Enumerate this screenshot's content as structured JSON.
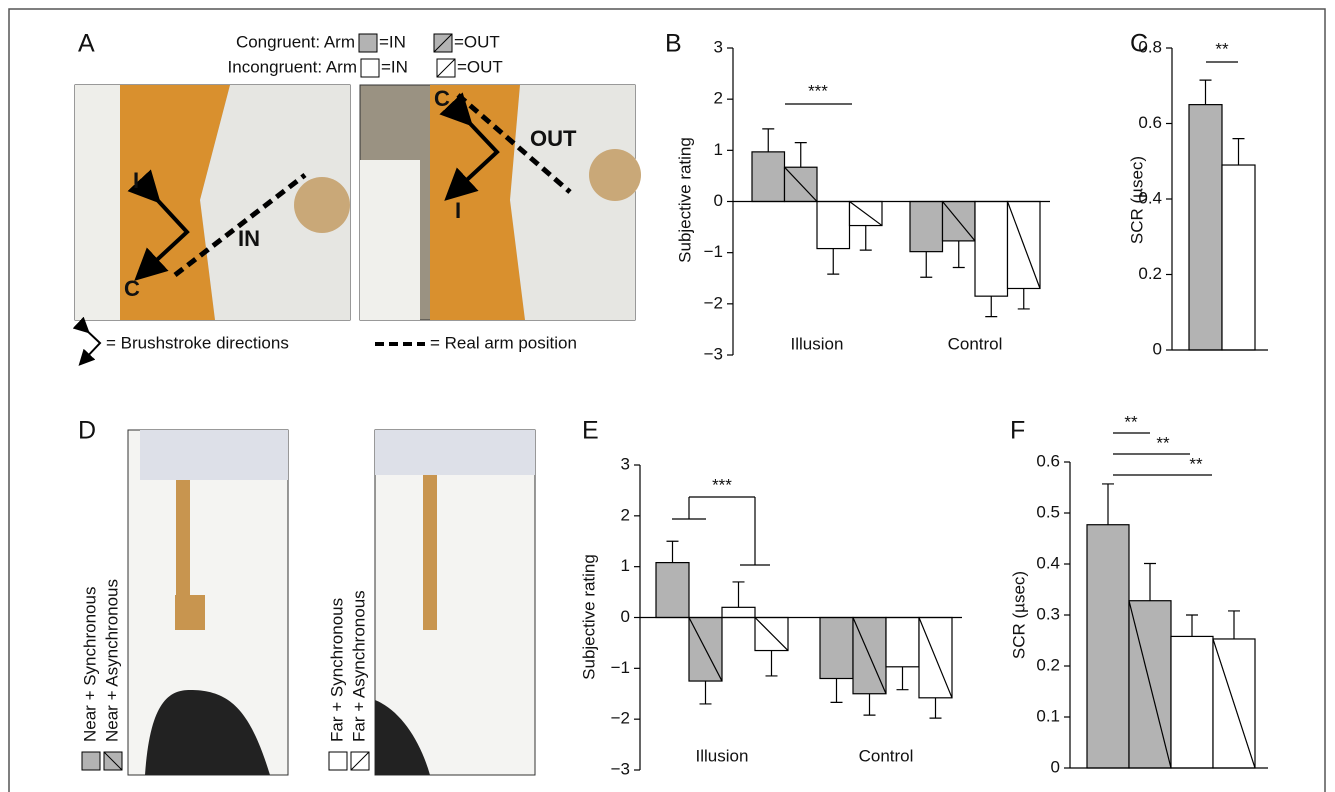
{
  "chart_data": [
    {
      "type": "bar",
      "panel": "B",
      "ylabel": "Subjective rating",
      "categories": [
        "Illusion",
        "Control"
      ],
      "series": [
        {
          "color": "#b3b3b3",
          "hatch": false,
          "values": [
            0.97,
            -0.98
          ],
          "errors": [
            0.45,
            0.5
          ]
        },
        {
          "color": "#b3b3b3",
          "hatch": true,
          "values": [
            0.67,
            -0.77
          ],
          "errors": [
            0.48,
            0.52
          ]
        },
        {
          "color": "#ffffff",
          "hatch": false,
          "values": [
            -0.92,
            -1.85
          ],
          "errors": [
            0.5,
            0.4
          ]
        },
        {
          "color": "#ffffff",
          "hatch": true,
          "values": [
            -0.47,
            -1.7
          ],
          "errors": [
            0.48,
            0.4
          ]
        }
      ],
      "ylim": [
        -3,
        3
      ],
      "yticks": [
        {
          "value": -3,
          "label": "−3"
        },
        {
          "value": -2,
          "label": "−2"
        },
        {
          "value": -1,
          "label": "−1"
        },
        0,
        1,
        2,
        3
      ],
      "annotations": [
        "***"
      ]
    },
    {
      "type": "bar",
      "panel": "C",
      "ylabel": "SCR (µsec)",
      "values": [
        0.65,
        0.49
      ],
      "errors": [
        0.065,
        0.07
      ],
      "colors": [
        "#b3b3b3",
        "#ffffff"
      ],
      "hatch": [
        false,
        false
      ],
      "ylim": [
        0,
        0.8
      ],
      "yticks": [
        0,
        0.2,
        0.4,
        0.6,
        0.8
      ],
      "annotations": [
        "**"
      ]
    },
    {
      "type": "bar",
      "panel": "E",
      "ylabel": "Subjective rating",
      "categories": [
        "Illusion",
        "Control"
      ],
      "series": [
        {
          "color": "#b3b3b3",
          "hatch": false,
          "values": [
            1.08,
            -1.2
          ],
          "errors": [
            0.42,
            0.47
          ]
        },
        {
          "color": "#b3b3b3",
          "hatch": true,
          "values": [
            -1.25,
            -1.5
          ],
          "errors": [
            0.45,
            0.42
          ]
        },
        {
          "color": "#ffffff",
          "hatch": false,
          "values": [
            0.2,
            -0.97
          ],
          "errors": [
            0.5,
            0.45
          ]
        },
        {
          "color": "#ffffff",
          "hatch": true,
          "values": [
            -0.65,
            -1.58
          ],
          "errors": [
            0.5,
            0.4
          ]
        }
      ],
      "ylim": [
        -3,
        3
      ],
      "yticks": [
        {
          "value": -3,
          "label": "−3"
        },
        {
          "value": -2,
          "label": "−2"
        },
        {
          "value": -1,
          "label": "−1"
        },
        0,
        1,
        2,
        3
      ],
      "annotations": [
        "***"
      ]
    },
    {
      "type": "bar",
      "panel": "F",
      "ylabel": "SCR (µsec)",
      "values": [
        0.477,
        0.328,
        0.258,
        0.253
      ],
      "errors": [
        0.08,
        0.073,
        0.042,
        0.055
      ],
      "colors": [
        "#b3b3b3",
        "#b3b3b3",
        "#ffffff",
        "#ffffff"
      ],
      "hatch": [
        false,
        true,
        false,
        true
      ],
      "ylim": [
        0,
        0.6
      ],
      "yticks": [
        0,
        0.1,
        0.2,
        0.3,
        0.4,
        0.5,
        0.6
      ],
      "annotations": [
        "**",
        "**",
        "**"
      ]
    }
  ],
  "panel_a": {
    "label": "A",
    "legend": [
      {
        "text": "Congruent: Arm",
        "in": "=IN",
        "out": "=OUT"
      },
      {
        "text": "Incongruent: Arm",
        "in": "=IN",
        "out": "=OUT"
      }
    ],
    "photos": [
      {
        "labels": [
          "I",
          "C",
          "IN"
        ]
      },
      {
        "labels": [
          "C",
          "OUT",
          "I"
        ]
      }
    ],
    "key": [
      "= Brushstroke directions",
      "= Real arm position"
    ]
  },
  "panel_d": {
    "label": "D",
    "legend": [
      [
        "Near + Synchronous",
        "Near + Asynchronous"
      ],
      [
        "Far + Synchronous",
        "Far + Asynchronous"
      ]
    ]
  }
}
